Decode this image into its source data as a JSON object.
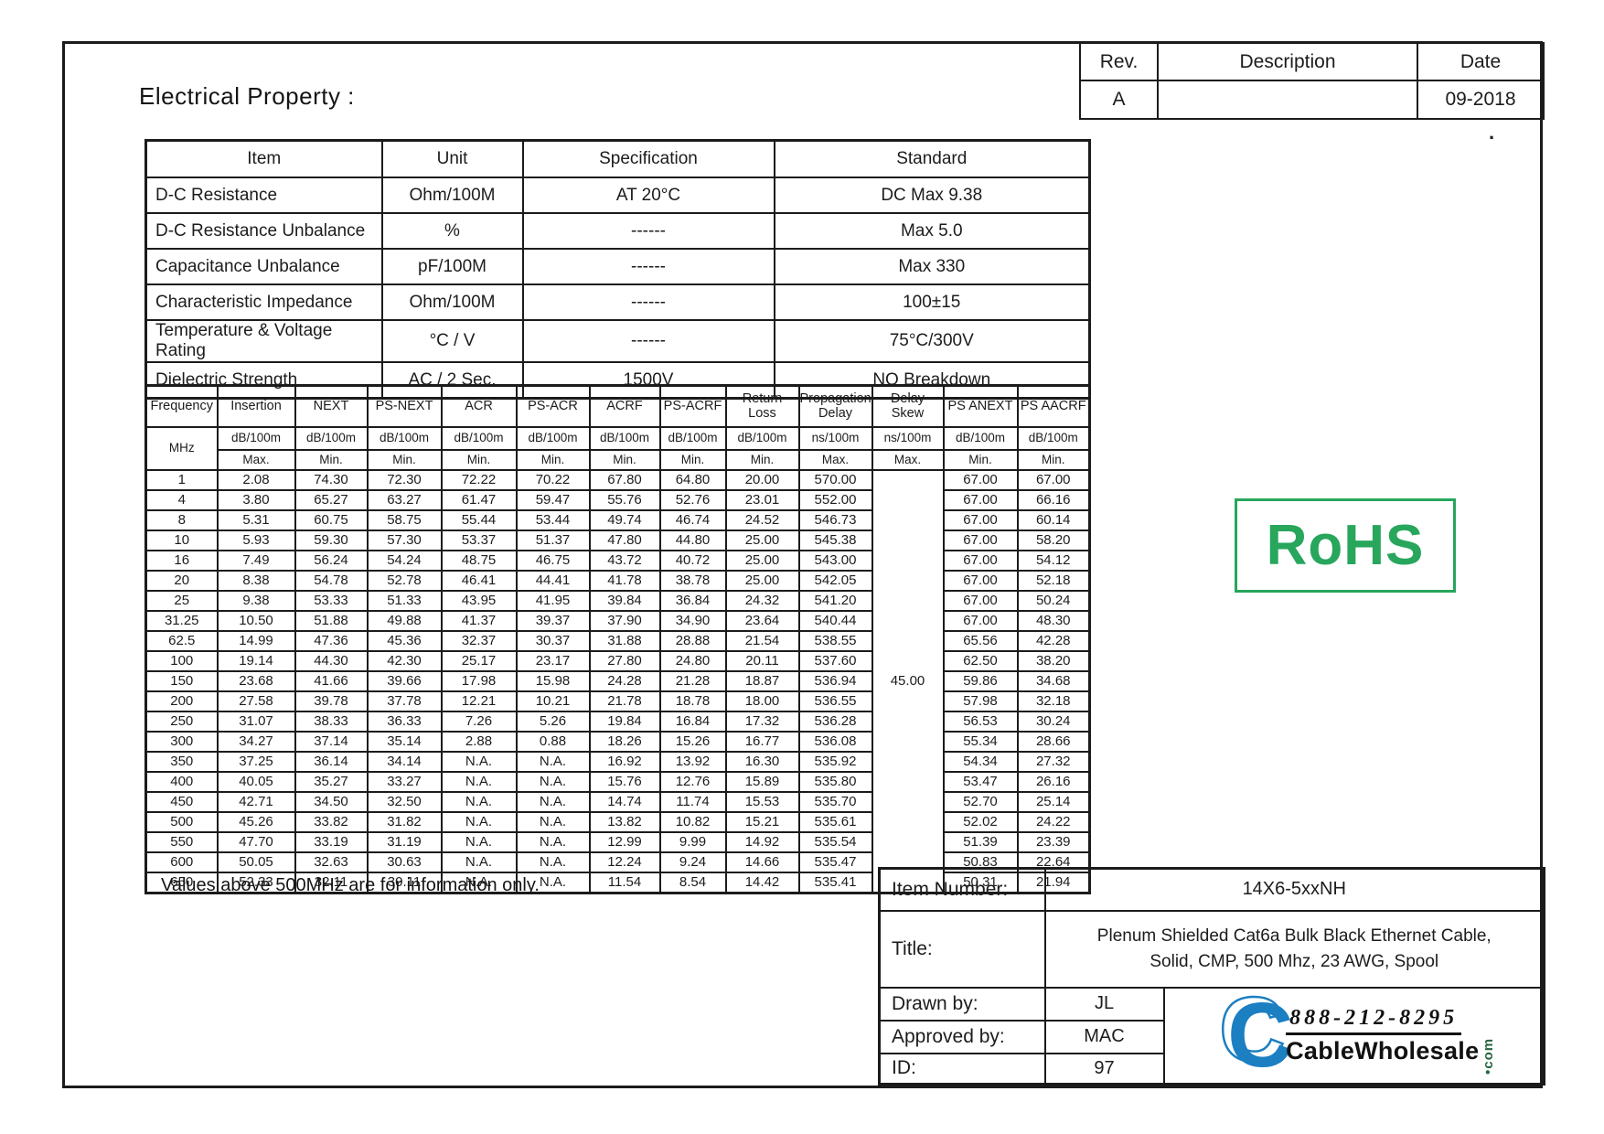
{
  "page": {
    "heading": "Electrical Property :",
    "note": "Values above 500MHz are for information only.",
    "stray_dot": "."
  },
  "rev_table": {
    "headers": [
      "Rev.",
      "Description",
      "Date"
    ],
    "rev": "A",
    "description": "",
    "date": "09-2018"
  },
  "property_table": {
    "headers": [
      "Item",
      "Unit",
      "Specification",
      "Standard"
    ],
    "rows": [
      [
        "D-C Resistance",
        "Ohm/100M",
        "AT 20°C",
        "DC Max 9.38"
      ],
      [
        "D-C Resistance Unbalance",
        "%",
        "------",
        "Max 5.0"
      ],
      [
        "Capacitance Unbalance",
        "pF/100M",
        "------",
        "Max 330"
      ],
      [
        "Characteristic Impedance",
        "Ohm/100M",
        "------",
        "100±15"
      ],
      [
        "Temperature & Voltage Rating",
        "°C / V",
        "------",
        "75°C/300V"
      ],
      [
        "Dielectric Strength",
        "AC / 2 Sec.",
        "1500V",
        "NO Breakdown"
      ]
    ]
  },
  "freq_table": {
    "columns": [
      {
        "name": "Frequency",
        "unit": "MHz",
        "limit": ""
      },
      {
        "name": "Insertion",
        "unit": "dB/100m",
        "limit": "Max."
      },
      {
        "name": "NEXT",
        "unit": "dB/100m",
        "limit": "Min."
      },
      {
        "name": "PS-NEXT",
        "unit": "dB/100m",
        "limit": "Min."
      },
      {
        "name": "ACR",
        "unit": "dB/100m",
        "limit": "Min."
      },
      {
        "name": "PS-ACR",
        "unit": "dB/100m",
        "limit": "Min."
      },
      {
        "name": "ACRF",
        "unit": "dB/100m",
        "limit": "Min."
      },
      {
        "name": "PS-ACRF",
        "unit": "dB/100m",
        "limit": "Min."
      },
      {
        "name": "Return Loss",
        "unit": "dB/100m",
        "limit": "Min."
      },
      {
        "name": "Propagation Delay",
        "unit": "ns/100m",
        "limit": "Max."
      },
      {
        "name": "Delay Skew",
        "unit": "ns/100m",
        "limit": "Max."
      },
      {
        "name": "PS ANEXT",
        "unit": "dB/100m",
        "limit": "Min."
      },
      {
        "name": "PS AACRF",
        "unit": "dB/100m",
        "limit": "Min."
      }
    ],
    "delay_skew_value": "45.00",
    "rows": [
      [
        "1",
        "2.08",
        "74.30",
        "72.30",
        "72.22",
        "70.22",
        "67.80",
        "64.80",
        "20.00",
        "570.00",
        "67.00",
        "67.00"
      ],
      [
        "4",
        "3.80",
        "65.27",
        "63.27",
        "61.47",
        "59.47",
        "55.76",
        "52.76",
        "23.01",
        "552.00",
        "67.00",
        "66.16"
      ],
      [
        "8",
        "5.31",
        "60.75",
        "58.75",
        "55.44",
        "53.44",
        "49.74",
        "46.74",
        "24.52",
        "546.73",
        "67.00",
        "60.14"
      ],
      [
        "10",
        "5.93",
        "59.30",
        "57.30",
        "53.37",
        "51.37",
        "47.80",
        "44.80",
        "25.00",
        "545.38",
        "67.00",
        "58.20"
      ],
      [
        "16",
        "7.49",
        "56.24",
        "54.24",
        "48.75",
        "46.75",
        "43.72",
        "40.72",
        "25.00",
        "543.00",
        "67.00",
        "54.12"
      ],
      [
        "20",
        "8.38",
        "54.78",
        "52.78",
        "46.41",
        "44.41",
        "41.78",
        "38.78",
        "25.00",
        "542.05",
        "67.00",
        "52.18"
      ],
      [
        "25",
        "9.38",
        "53.33",
        "51.33",
        "43.95",
        "41.95",
        "39.84",
        "36.84",
        "24.32",
        "541.20",
        "67.00",
        "50.24"
      ],
      [
        "31.25",
        "10.50",
        "51.88",
        "49.88",
        "41.37",
        "39.37",
        "37.90",
        "34.90",
        "23.64",
        "540.44",
        "67.00",
        "48.30"
      ],
      [
        "62.5",
        "14.99",
        "47.36",
        "45.36",
        "32.37",
        "30.37",
        "31.88",
        "28.88",
        "21.54",
        "538.55",
        "65.56",
        "42.28"
      ],
      [
        "100",
        "19.14",
        "44.30",
        "42.30",
        "25.17",
        "23.17",
        "27.80",
        "24.80",
        "20.11",
        "537.60",
        "62.50",
        "38.20"
      ],
      [
        "150",
        "23.68",
        "41.66",
        "39.66",
        "17.98",
        "15.98",
        "24.28",
        "21.28",
        "18.87",
        "536.94",
        "59.86",
        "34.68"
      ],
      [
        "200",
        "27.58",
        "39.78",
        "37.78",
        "12.21",
        "10.21",
        "21.78",
        "18.78",
        "18.00",
        "536.55",
        "57.98",
        "32.18"
      ],
      [
        "250",
        "31.07",
        "38.33",
        "36.33",
        "7.26",
        "5.26",
        "19.84",
        "16.84",
        "17.32",
        "536.28",
        "56.53",
        "30.24"
      ],
      [
        "300",
        "34.27",
        "37.14",
        "35.14",
        "2.88",
        "0.88",
        "18.26",
        "15.26",
        "16.77",
        "536.08",
        "55.34",
        "28.66"
      ],
      [
        "350",
        "37.25",
        "36.14",
        "34.14",
        "N.A.",
        "N.A.",
        "16.92",
        "13.92",
        "16.30",
        "535.92",
        "54.34",
        "27.32"
      ],
      [
        "400",
        "40.05",
        "35.27",
        "33.27",
        "N.A.",
        "N.A.",
        "15.76",
        "12.76",
        "15.89",
        "535.80",
        "53.47",
        "26.16"
      ],
      [
        "450",
        "42.71",
        "34.50",
        "32.50",
        "N.A.",
        "N.A.",
        "14.74",
        "11.74",
        "15.53",
        "535.70",
        "52.70",
        "25.14"
      ],
      [
        "500",
        "45.26",
        "33.82",
        "31.82",
        "N.A.",
        "N.A.",
        "13.82",
        "10.82",
        "15.21",
        "535.61",
        "52.02",
        "24.22"
      ],
      [
        "550",
        "47.70",
        "33.19",
        "31.19",
        "N.A.",
        "N.A.",
        "12.99",
        "9.99",
        "14.92",
        "535.54",
        "51.39",
        "23.39"
      ],
      [
        "600",
        "50.05",
        "32.63",
        "30.63",
        "N.A.",
        "N.A.",
        "12.24",
        "9.24",
        "14.66",
        "535.47",
        "50.83",
        "22.64"
      ],
      [
        "650",
        "52.33",
        "32.11",
        "30.11",
        "N.A.",
        "N.A.",
        "11.54",
        "8.54",
        "14.42",
        "535.41",
        "50.31",
        "21.94"
      ]
    ]
  },
  "rohs": {
    "label": "RoHS",
    "color": "#27a65c"
  },
  "info_table": {
    "item_number_label": "Item Number:",
    "item_number": "14X6-5xxNH",
    "title_label": "Title:",
    "title_line1": "Plenum Shielded Cat6a Bulk Black Ethernet Cable,",
    "title_line2": "Solid, CMP, 500 Mhz, 23 AWG, Spool",
    "drawn_by_label": "Drawn by:",
    "drawn_by": "JL",
    "approved_by_label": "Approved by:",
    "approved_by": "MAC",
    "id_label": "ID:",
    "id": "97"
  },
  "logo": {
    "monogram": "C",
    "phone": "888-212-8295",
    "name": "CableWholesale",
    "tld": "•com",
    "blue": "#1b7fc2"
  }
}
